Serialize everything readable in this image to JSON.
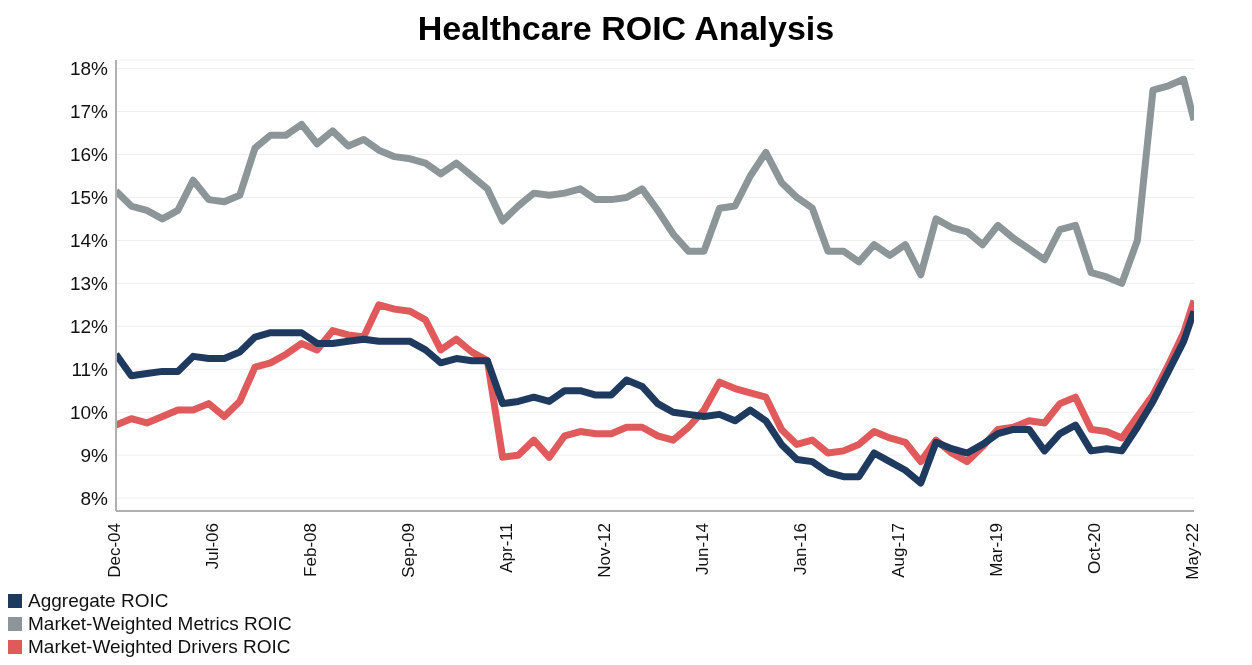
{
  "chart_data": {
    "type": "line",
    "title": "Healthcare ROIC Analysis",
    "x": [
      "2004-12",
      "2005-03",
      "2005-06",
      "2005-09",
      "2005-12",
      "2006-03",
      "2006-06",
      "2006-09",
      "2006-12",
      "2007-03",
      "2007-06",
      "2007-09",
      "2007-12",
      "2008-03",
      "2008-06",
      "2008-09",
      "2008-12",
      "2009-03",
      "2009-06",
      "2009-09",
      "2009-12",
      "2010-03",
      "2010-06",
      "2010-09",
      "2010-12",
      "2011-03",
      "2011-06",
      "2011-09",
      "2011-12",
      "2012-03",
      "2012-06",
      "2012-09",
      "2012-12",
      "2013-03",
      "2013-06",
      "2013-09",
      "2013-12",
      "2014-03",
      "2014-06",
      "2014-09",
      "2014-12",
      "2015-03",
      "2015-06",
      "2015-09",
      "2015-12",
      "2016-03",
      "2016-06",
      "2016-09",
      "2016-12",
      "2017-03",
      "2017-06",
      "2017-09",
      "2017-12",
      "2018-03",
      "2018-06",
      "2018-09",
      "2018-12",
      "2019-03",
      "2019-06",
      "2019-09",
      "2019-12",
      "2020-03",
      "2020-06",
      "2020-09",
      "2020-12",
      "2021-03",
      "2021-06",
      "2021-09",
      "2021-12",
      "2022-03",
      "2022-05"
    ],
    "series": [
      {
        "name": "Aggregate ROIC",
        "color": "#1f3a5f",
        "values": [
          11.35,
          10.85,
          10.9,
          10.95,
          10.95,
          11.3,
          11.25,
          11.25,
          11.4,
          11.75,
          11.85,
          11.85,
          11.85,
          11.6,
          11.6,
          11.65,
          11.7,
          11.65,
          11.65,
          11.65,
          11.45,
          11.15,
          11.25,
          11.2,
          11.2,
          10.2,
          10.25,
          10.35,
          10.25,
          10.5,
          10.5,
          10.4,
          10.4,
          10.75,
          10.6,
          10.2,
          10.0,
          9.95,
          9.9,
          9.95,
          9.8,
          10.05,
          9.8,
          9.25,
          8.9,
          8.85,
          8.6,
          8.5,
          8.5,
          9.05,
          8.85,
          8.65,
          8.35,
          9.3,
          9.15,
          9.05,
          9.25,
          9.5,
          9.6,
          9.6,
          9.1,
          9.5,
          9.7,
          9.1,
          9.15,
          9.1,
          9.65,
          10.25,
          10.95,
          11.65,
          12.35
        ]
      },
      {
        "name": "Market-Weighted Metrics ROIC",
        "color": "#8c9598",
        "values": [
          15.15,
          14.8,
          14.7,
          14.5,
          14.7,
          15.4,
          14.95,
          14.9,
          15.05,
          16.15,
          16.45,
          16.45,
          16.7,
          16.25,
          16.55,
          16.2,
          16.35,
          16.1,
          15.95,
          15.9,
          15.8,
          15.55,
          15.8,
          15.5,
          15.2,
          14.45,
          14.8,
          15.1,
          15.05,
          15.1,
          15.2,
          14.95,
          14.95,
          15.0,
          15.2,
          14.7,
          14.15,
          13.75,
          13.75,
          14.75,
          14.8,
          15.5,
          16.05,
          15.35,
          15.0,
          14.75,
          13.75,
          13.75,
          13.5,
          13.9,
          13.65,
          13.9,
          13.2,
          14.5,
          14.3,
          14.2,
          13.9,
          14.35,
          14.05,
          13.8,
          13.55,
          14.25,
          14.35,
          13.25,
          13.15,
          13.0,
          14.0,
          17.5,
          17.6,
          17.75,
          16.8
        ]
      },
      {
        "name": "Market-Weighted Drivers ROIC",
        "color": "#e05a5c",
        "values": [
          9.7,
          9.85,
          9.75,
          9.9,
          10.05,
          10.05,
          10.2,
          9.9,
          10.25,
          11.05,
          11.15,
          11.35,
          11.6,
          11.45,
          11.9,
          11.8,
          11.75,
          12.5,
          12.4,
          12.35,
          12.15,
          11.45,
          11.7,
          11.4,
          11.2,
          8.95,
          9.0,
          9.35,
          8.95,
          9.45,
          9.55,
          9.5,
          9.5,
          9.65,
          9.65,
          9.45,
          9.35,
          9.65,
          10.05,
          10.7,
          10.55,
          10.45,
          10.35,
          9.6,
          9.25,
          9.35,
          9.05,
          9.1,
          9.25,
          9.55,
          9.4,
          9.3,
          8.85,
          9.35,
          9.05,
          8.85,
          9.2,
          9.6,
          9.65,
          9.8,
          9.75,
          10.2,
          10.35,
          9.6,
          9.55,
          9.4,
          9.9,
          10.4,
          11.1,
          11.85,
          12.6
        ]
      }
    ],
    "xlim": [
      "2004-12",
      "2022-05"
    ],
    "xticks": [
      {
        "value": "2004-12",
        "label": "Dec-04"
      },
      {
        "value": "2006-07",
        "label": "Jul-06"
      },
      {
        "value": "2008-02",
        "label": "Feb-08"
      },
      {
        "value": "2009-09",
        "label": "Sep-09"
      },
      {
        "value": "2011-04",
        "label": "Apr-11"
      },
      {
        "value": "2012-11",
        "label": "Nov-12"
      },
      {
        "value": "2014-06",
        "label": "Jun-14"
      },
      {
        "value": "2016-01",
        "label": "Jan-16"
      },
      {
        "value": "2017-08",
        "label": "Aug-17"
      },
      {
        "value": "2019-03",
        "label": "Mar-19"
      },
      {
        "value": "2020-10",
        "label": "Oct-20"
      },
      {
        "value": "2022-05",
        "label": "May-22"
      }
    ],
    "ylim": [
      7.7,
      18.2
    ],
    "yticks": [
      {
        "value": 8,
        "label": "8%"
      },
      {
        "value": 9,
        "label": "9%"
      },
      {
        "value": 10,
        "label": "10%"
      },
      {
        "value": 11,
        "label": "11%"
      },
      {
        "value": 12,
        "label": "12%"
      },
      {
        "value": 13,
        "label": "13%"
      },
      {
        "value": 14,
        "label": "14%"
      },
      {
        "value": 15,
        "label": "15%"
      },
      {
        "value": 16,
        "label": "16%"
      },
      {
        "value": 17,
        "label": "17%"
      },
      {
        "value": 18,
        "label": "18%"
      }
    ],
    "grid": "y",
    "legend": "bottom left",
    "marker": "none",
    "line_style": "solid"
  }
}
